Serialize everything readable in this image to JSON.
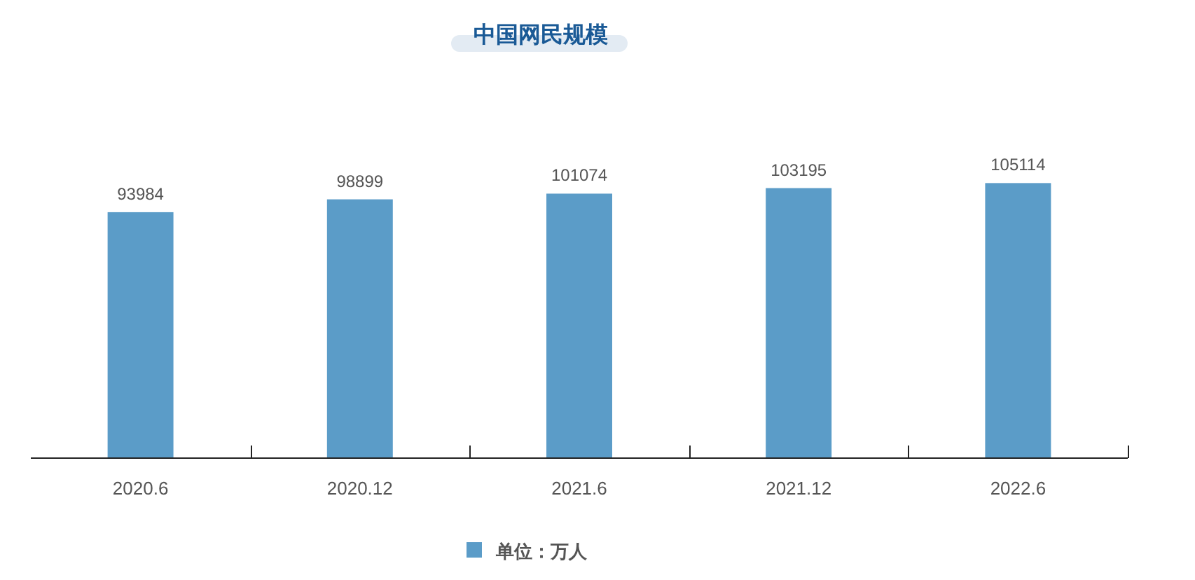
{
  "chart_data": {
    "type": "bar",
    "title": "中国网民规模",
    "categories": [
      "2020.6",
      "2020.12",
      "2021.6",
      "2021.12",
      "2022.6"
    ],
    "series": [
      {
        "name": "单位：万人",
        "color": "#5b9cc8",
        "values": [
          93984,
          98899,
          101074,
          103195,
          105114
        ]
      }
    ],
    "data_labels": true,
    "legend": "bottom",
    "grid": false
  }
}
